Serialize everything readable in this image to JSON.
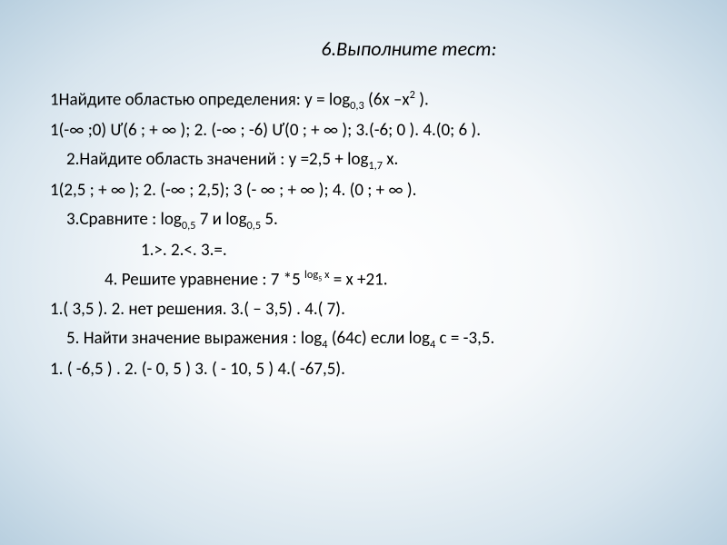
{
  "title": "6.Выполните тест:",
  "lines": [
    {
      "text": "1Найдите областью определения: у = log|0,3| (6х –х|^2| ).",
      "indent": ""
    },
    {
      "text": "1(-∞ ;0) Ư(6 ; + ∞ );  2. (-∞ ; -6) Ư(0 ; + ∞ ); 3.(-6; 0 ).  4.(0; 6 ).",
      "indent": ""
    },
    {
      "text": "2.Найдите область значений :  у =2,5 + log|1,7| х.",
      "indent": "indent1"
    },
    {
      "text": "1(2,5 ; + ∞ );      2. (-∞ ; 2,5);        3 (- ∞  ; + ∞ ); 4.   (0 ; + ∞ ).",
      "indent": ""
    },
    {
      "text": "3.Сравните :    log|0,5| 7       и  log|0,5| 5.",
      "indent": "indent1"
    },
    {
      "text": "1.>.   2.<.   3.=.",
      "indent": "indent3"
    },
    {
      "text": "4. Решите уравнение  :                     7 *5 |^log|~5~|  х| = х +21.",
      "indent": "indent2"
    },
    {
      "text": "1.( 3,5 ).        2. нет решения.      3.( – 3,5) .       4.( 7).",
      "indent": ""
    },
    {
      "text": "5. Найти значение выражения :    log|4| (64c) если   log|4| c = -3,5.",
      "indent": "indent1"
    },
    {
      "text": "1. ( -6,5 ) .      2. (- 0, 5 )   3. ( - 10, 5 )       4.( -67,5).",
      "indent": ""
    }
  ],
  "colors": {
    "text": "#000000",
    "bg_inner": "#ffffff",
    "bg_outer": "#b8cfdf"
  },
  "font": {
    "family": "Calibri",
    "title_size": 22,
    "body_size": 19
  }
}
